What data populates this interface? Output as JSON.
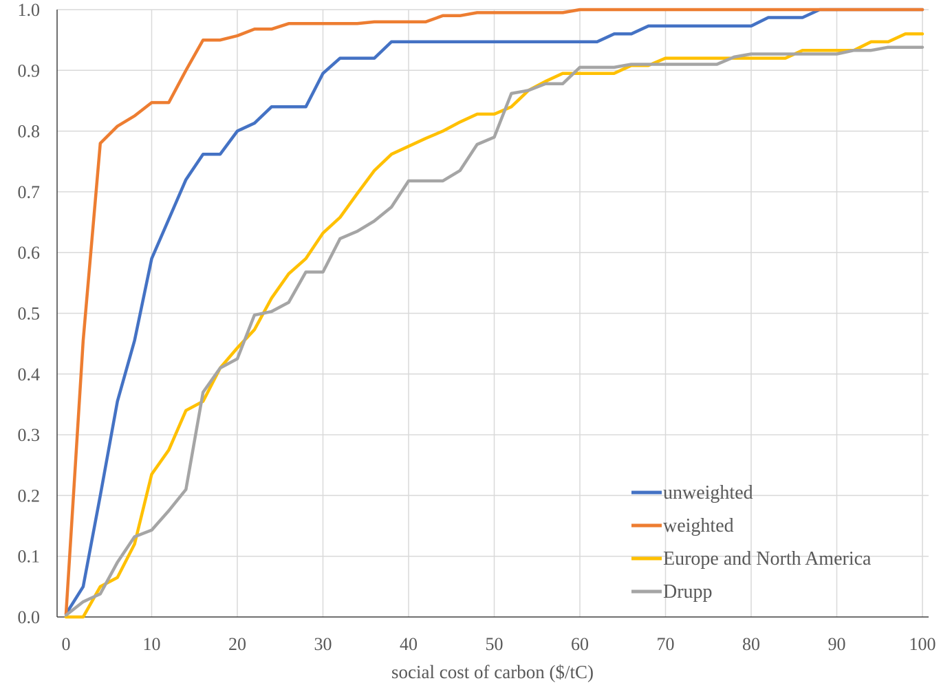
{
  "chart_data": {
    "type": "line",
    "title": "",
    "xlabel": "social cost of carbon ($/tC)",
    "ylabel": "",
    "xlim": [
      0,
      100
    ],
    "ylim": [
      0,
      1
    ],
    "x_ticks": [
      "0",
      "10",
      "20",
      "30",
      "40",
      "50",
      "60",
      "70",
      "80",
      "90",
      "100"
    ],
    "y_ticks": [
      "0.0",
      "0.1",
      "0.2",
      "0.3",
      "0.4",
      "0.5",
      "0.6",
      "0.7",
      "0.8",
      "0.9",
      "1.0"
    ],
    "grid": "vertical and horizontal",
    "legend_position": "bottom-right",
    "series": [
      {
        "name": "unweighted",
        "color": "#4472C4",
        "points": [
          [
            0,
            0.005
          ],
          [
            2,
            0.05
          ],
          [
            4,
            0.2
          ],
          [
            6,
            0.355
          ],
          [
            8,
            0.455
          ],
          [
            10,
            0.59
          ],
          [
            12,
            0.655
          ],
          [
            14,
            0.72
          ],
          [
            16,
            0.762
          ],
          [
            18,
            0.762
          ],
          [
            20,
            0.8
          ],
          [
            22,
            0.813
          ],
          [
            24,
            0.84
          ],
          [
            26,
            0.84
          ],
          [
            28,
            0.84
          ],
          [
            30,
            0.895
          ],
          [
            32,
            0.92
          ],
          [
            34,
            0.92
          ],
          [
            36,
            0.92
          ],
          [
            38,
            0.947
          ],
          [
            40,
            0.947
          ],
          [
            42,
            0.947
          ],
          [
            44,
            0.947
          ],
          [
            46,
            0.947
          ],
          [
            48,
            0.947
          ],
          [
            50,
            0.947
          ],
          [
            52,
            0.947
          ],
          [
            54,
            0.947
          ],
          [
            56,
            0.947
          ],
          [
            58,
            0.947
          ],
          [
            60,
            0.947
          ],
          [
            62,
            0.947
          ],
          [
            64,
            0.96
          ],
          [
            66,
            0.96
          ],
          [
            68,
            0.973
          ],
          [
            70,
            0.973
          ],
          [
            72,
            0.973
          ],
          [
            74,
            0.973
          ],
          [
            76,
            0.973
          ],
          [
            78,
            0.973
          ],
          [
            80,
            0.973
          ],
          [
            82,
            0.987
          ],
          [
            84,
            0.987
          ],
          [
            86,
            0.987
          ],
          [
            88,
            1.0
          ],
          [
            90,
            1.0
          ],
          [
            92,
            1.0
          ],
          [
            94,
            1.0
          ],
          [
            96,
            1.0
          ],
          [
            98,
            1.0
          ],
          [
            100,
            1.0
          ]
        ]
      },
      {
        "name": "weighted",
        "color": "#ED7D31",
        "points": [
          [
            0,
            0.005
          ],
          [
            2,
            0.455
          ],
          [
            4,
            0.78
          ],
          [
            6,
            0.808
          ],
          [
            8,
            0.825
          ],
          [
            10,
            0.847
          ],
          [
            12,
            0.847
          ],
          [
            14,
            0.9
          ],
          [
            16,
            0.95
          ],
          [
            18,
            0.95
          ],
          [
            20,
            0.957
          ],
          [
            22,
            0.968
          ],
          [
            24,
            0.968
          ],
          [
            26,
            0.977
          ],
          [
            28,
            0.977
          ],
          [
            30,
            0.977
          ],
          [
            32,
            0.977
          ],
          [
            34,
            0.977
          ],
          [
            36,
            0.98
          ],
          [
            38,
            0.98
          ],
          [
            40,
            0.98
          ],
          [
            42,
            0.98
          ],
          [
            44,
            0.99
          ],
          [
            46,
            0.99
          ],
          [
            48,
            0.995
          ],
          [
            50,
            0.995
          ],
          [
            52,
            0.995
          ],
          [
            54,
            0.995
          ],
          [
            56,
            0.995
          ],
          [
            58,
            0.995
          ],
          [
            60,
            1.0
          ],
          [
            62,
            1.0
          ],
          [
            64,
            1.0
          ],
          [
            66,
            1.0
          ],
          [
            68,
            1.0
          ],
          [
            70,
            1.0
          ],
          [
            72,
            1.0
          ],
          [
            74,
            1.0
          ],
          [
            76,
            1.0
          ],
          [
            78,
            1.0
          ],
          [
            80,
            1.0
          ],
          [
            82,
            1.0
          ],
          [
            84,
            1.0
          ],
          [
            86,
            1.0
          ],
          [
            88,
            1.0
          ],
          [
            90,
            1.0
          ],
          [
            92,
            1.0
          ],
          [
            94,
            1.0
          ],
          [
            96,
            1.0
          ],
          [
            98,
            1.0
          ],
          [
            100,
            1.0
          ]
        ]
      },
      {
        "name": "Europe and North America",
        "color": "#FFC000",
        "points": [
          [
            0,
            0.0
          ],
          [
            2,
            0.0
          ],
          [
            4,
            0.05
          ],
          [
            6,
            0.065
          ],
          [
            8,
            0.12
          ],
          [
            10,
            0.235
          ],
          [
            12,
            0.275
          ],
          [
            14,
            0.34
          ],
          [
            16,
            0.355
          ],
          [
            18,
            0.41
          ],
          [
            20,
            0.443
          ],
          [
            22,
            0.473
          ],
          [
            24,
            0.525
          ],
          [
            26,
            0.565
          ],
          [
            28,
            0.59
          ],
          [
            30,
            0.632
          ],
          [
            32,
            0.658
          ],
          [
            34,
            0.697
          ],
          [
            36,
            0.735
          ],
          [
            38,
            0.762
          ],
          [
            40,
            0.775
          ],
          [
            42,
            0.788
          ],
          [
            44,
            0.8
          ],
          [
            46,
            0.815
          ],
          [
            48,
            0.828
          ],
          [
            50,
            0.828
          ],
          [
            52,
            0.84
          ],
          [
            54,
            0.867
          ],
          [
            56,
            0.882
          ],
          [
            58,
            0.895
          ],
          [
            60,
            0.895
          ],
          [
            62,
            0.895
          ],
          [
            64,
            0.895
          ],
          [
            66,
            0.908
          ],
          [
            68,
            0.908
          ],
          [
            70,
            0.92
          ],
          [
            72,
            0.92
          ],
          [
            74,
            0.92
          ],
          [
            76,
            0.92
          ],
          [
            78,
            0.92
          ],
          [
            80,
            0.92
          ],
          [
            82,
            0.92
          ],
          [
            84,
            0.92
          ],
          [
            86,
            0.933
          ],
          [
            88,
            0.933
          ],
          [
            90,
            0.933
          ],
          [
            92,
            0.933
          ],
          [
            94,
            0.947
          ],
          [
            96,
            0.947
          ],
          [
            98,
            0.96
          ],
          [
            100,
            0.96
          ]
        ]
      },
      {
        "name": "Drupp",
        "color": "#A5A5A5",
        "points": [
          [
            0,
            0.003
          ],
          [
            2,
            0.025
          ],
          [
            4,
            0.038
          ],
          [
            6,
            0.09
          ],
          [
            8,
            0.132
          ],
          [
            10,
            0.143
          ],
          [
            12,
            0.175
          ],
          [
            14,
            0.21
          ],
          [
            16,
            0.37
          ],
          [
            18,
            0.41
          ],
          [
            20,
            0.425
          ],
          [
            22,
            0.497
          ],
          [
            24,
            0.503
          ],
          [
            26,
            0.518
          ],
          [
            28,
            0.568
          ],
          [
            30,
            0.568
          ],
          [
            32,
            0.623
          ],
          [
            34,
            0.635
          ],
          [
            36,
            0.652
          ],
          [
            38,
            0.675
          ],
          [
            40,
            0.718
          ],
          [
            42,
            0.718
          ],
          [
            44,
            0.718
          ],
          [
            46,
            0.735
          ],
          [
            48,
            0.778
          ],
          [
            50,
            0.79
          ],
          [
            52,
            0.862
          ],
          [
            54,
            0.867
          ],
          [
            56,
            0.878
          ],
          [
            58,
            0.878
          ],
          [
            60,
            0.905
          ],
          [
            62,
            0.905
          ],
          [
            64,
            0.905
          ],
          [
            66,
            0.91
          ],
          [
            68,
            0.91
          ],
          [
            70,
            0.91
          ],
          [
            72,
            0.91
          ],
          [
            74,
            0.91
          ],
          [
            76,
            0.91
          ],
          [
            78,
            0.922
          ],
          [
            80,
            0.927
          ],
          [
            82,
            0.927
          ],
          [
            84,
            0.927
          ],
          [
            86,
            0.927
          ],
          [
            88,
            0.927
          ],
          [
            90,
            0.927
          ],
          [
            92,
            0.933
          ],
          [
            94,
            0.933
          ],
          [
            96,
            0.938
          ],
          [
            98,
            0.938
          ],
          [
            100,
            0.938
          ]
        ]
      }
    ]
  }
}
